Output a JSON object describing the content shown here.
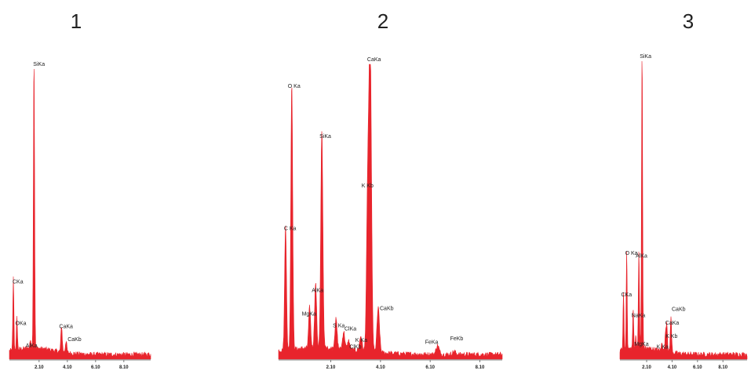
{
  "colors": {
    "spectrum": "#e8242c",
    "axis": "#777777",
    "text": "#222222"
  },
  "chart_data": [
    {
      "type": "line",
      "title": "1",
      "xlabel": "",
      "ylabel": "",
      "xlim": [
        0,
        10
      ],
      "ylim": [
        0,
        100
      ],
      "x_ticks": [
        2.1,
        4.1,
        6.1,
        8.1
      ],
      "tick_labels": [
        "2.10",
        "4.10",
        "6.10",
        "8.10"
      ],
      "peaks": [
        {
          "label": "CKa",
          "x": 0.28,
          "y": 25
        },
        {
          "label": "OKa",
          "x": 0.53,
          "y": 11
        },
        {
          "label": "AlKa",
          "x": 1.49,
          "y": 3
        },
        {
          "label": "SiKa",
          "x": 1.74,
          "y": 100
        },
        {
          "label": "CaKa",
          "x": 3.69,
          "y": 9
        },
        {
          "label": "CaKb",
          "x": 4.01,
          "y": 4
        }
      ]
    },
    {
      "type": "line",
      "title": "2",
      "xlabel": "",
      "ylabel": "",
      "xlim": [
        0,
        9
      ],
      "ylim": [
        0,
        100
      ],
      "x_ticks": [
        2.1,
        4.1,
        6.1,
        8.1
      ],
      "tick_labels": [
        "2.10",
        "4.10",
        "6.10",
        "8.10"
      ],
      "peaks": [
        {
          "label": "C Ka",
          "x": 0.28,
          "y": 43
        },
        {
          "label": "O Ka",
          "x": 0.53,
          "y": 91
        },
        {
          "label": "MgKa",
          "x": 1.25,
          "y": 14
        },
        {
          "label": "AlKa",
          "x": 1.49,
          "y": 22
        },
        {
          "label": "SiKa",
          "x": 1.74,
          "y": 74
        },
        {
          "label": "S Ka",
          "x": 2.31,
          "y": 10
        },
        {
          "label": "ClKa",
          "x": 2.62,
          "y": 6
        },
        {
          "label": "ClKb",
          "x": 2.82,
          "y": 3
        },
        {
          "label": "K Ka",
          "x": 3.31,
          "y": 5
        },
        {
          "label": "K Kb",
          "x": 3.59,
          "y": 55
        },
        {
          "label": "CaKa",
          "x": 3.69,
          "y": 100
        },
        {
          "label": "CaKb",
          "x": 4.01,
          "y": 15
        },
        {
          "label": "FeKa",
          "x": 6.4,
          "y": 3
        },
        {
          "label": "FeKb",
          "x": 7.06,
          "y": 1
        }
      ]
    },
    {
      "type": "line",
      "title": "3",
      "xlabel": "",
      "ylabel": "",
      "xlim": [
        0,
        10
      ],
      "ylim": [
        0,
        100
      ],
      "x_ticks": [
        2.1,
        4.1,
        6.1,
        8.1
      ],
      "tick_labels": [
        "2.10",
        "4.10",
        "6.10",
        "8.10"
      ],
      "peaks": [
        {
          "label": "CKa",
          "x": 0.28,
          "y": 20
        },
        {
          "label": "O Ka",
          "x": 0.53,
          "y": 34
        },
        {
          "label": "NaKa",
          "x": 1.04,
          "y": 13
        },
        {
          "label": "MgKa",
          "x": 1.25,
          "y": 4
        },
        {
          "label": "AlKa",
          "x": 1.49,
          "y": 33
        },
        {
          "label": "SiKa",
          "x": 1.74,
          "y": 100
        },
        {
          "label": "K Ka",
          "x": 3.31,
          "y": 3
        },
        {
          "label": "K Kb",
          "x": 3.59,
          "y": 6
        },
        {
          "label": "CaKa",
          "x": 3.69,
          "y": 9
        },
        {
          "label": "CaKb",
          "x": 4.01,
          "y": 12
        }
      ]
    }
  ]
}
